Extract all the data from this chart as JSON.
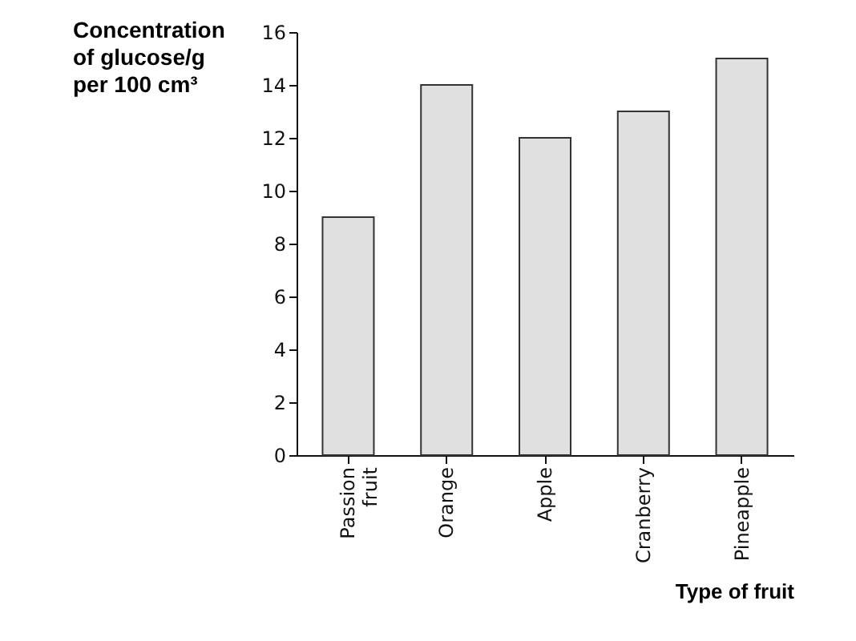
{
  "chart_data": {
    "type": "bar",
    "xlabel": "Type of fruit",
    "ylabel": "Concentration of glucose/g per 100 cm³",
    "categories": [
      "Passion fruit",
      "Orange",
      "Apple",
      "Cranberry",
      "Pineapple"
    ],
    "values": [
      9,
      14,
      12,
      13,
      15
    ],
    "color": "#e0e0e0",
    "ylim": [
      0,
      16
    ],
    "yticks": [
      0,
      2,
      4,
      6,
      8,
      10,
      12,
      14,
      16
    ],
    "grid": false
  }
}
